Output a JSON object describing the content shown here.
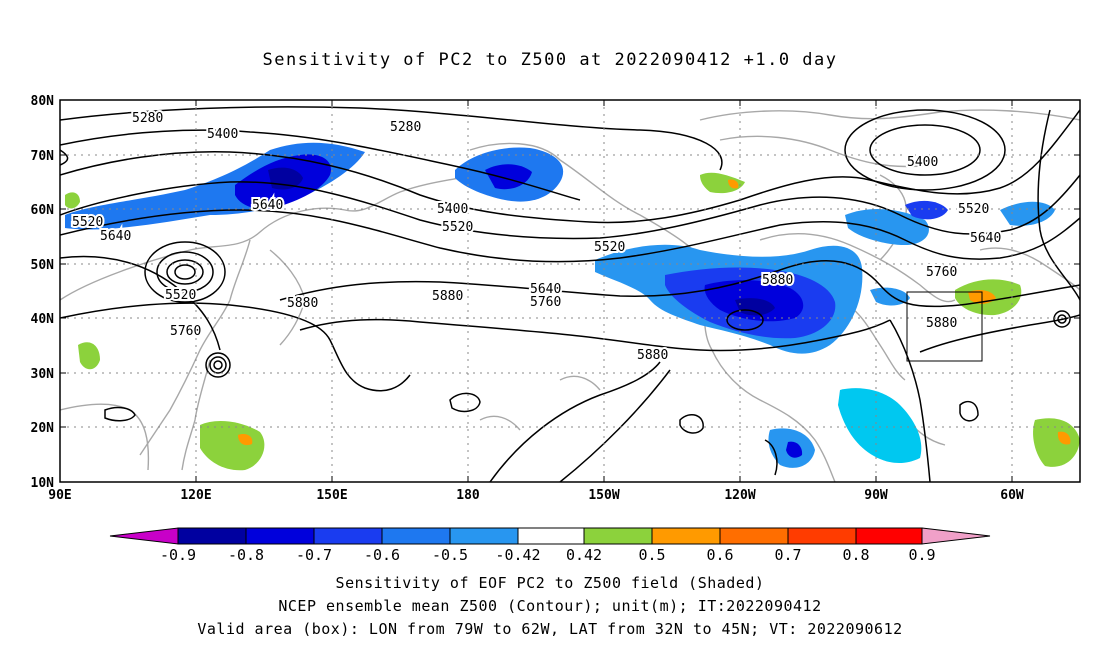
{
  "title": "Sensitivity of PC2 to Z500 at 2022090412 +1.0 day",
  "axes": {
    "lat_labels": [
      "80N",
      "70N",
      "60N",
      "50N",
      "40N",
      "30N",
      "20N",
      "10N"
    ],
    "lon_labels": [
      "90E",
      "120E",
      "150E",
      "180",
      "150W",
      "120W",
      "90W",
      "60W"
    ]
  },
  "contour_labels": [
    "5280",
    "5400",
    "5280",
    "5400",
    "5640",
    "5520",
    "5640",
    "5520",
    "5400",
    "5520",
    "5880",
    "5520",
    "5640",
    "5760",
    "5880",
    "5760",
    "5880",
    "5880",
    "5400",
    "5520",
    "5640",
    "5760",
    "5880"
  ],
  "colorbar": {
    "ticks": [
      "-0.9",
      "-0.8",
      "-0.7",
      "-0.6",
      "-0.5",
      "-0.42",
      "0.42",
      "0.5",
      "0.6",
      "0.7",
      "0.8",
      "0.9"
    ],
    "colors": [
      "#c800c8",
      "#0000a0",
      "#0000dc",
      "#1a3cf0",
      "#1e78f0",
      "#2896f0",
      "#00c8f0",
      "#ffffff",
      "#8cd23c",
      "#ff9a00",
      "#ff6e00",
      "#ff3c00",
      "#ff0000",
      "#f0a0c8"
    ]
  },
  "caption": [
    "Sensitivity of EOF PC2 to Z500 field (Shaded)",
    "NCEP ensemble mean Z500 (Contour); unit(m); IT:2022090412",
    "Valid area (box): LON from 79W to 62W, LAT from 32N to 45N; VT: 2022090612"
  ]
}
